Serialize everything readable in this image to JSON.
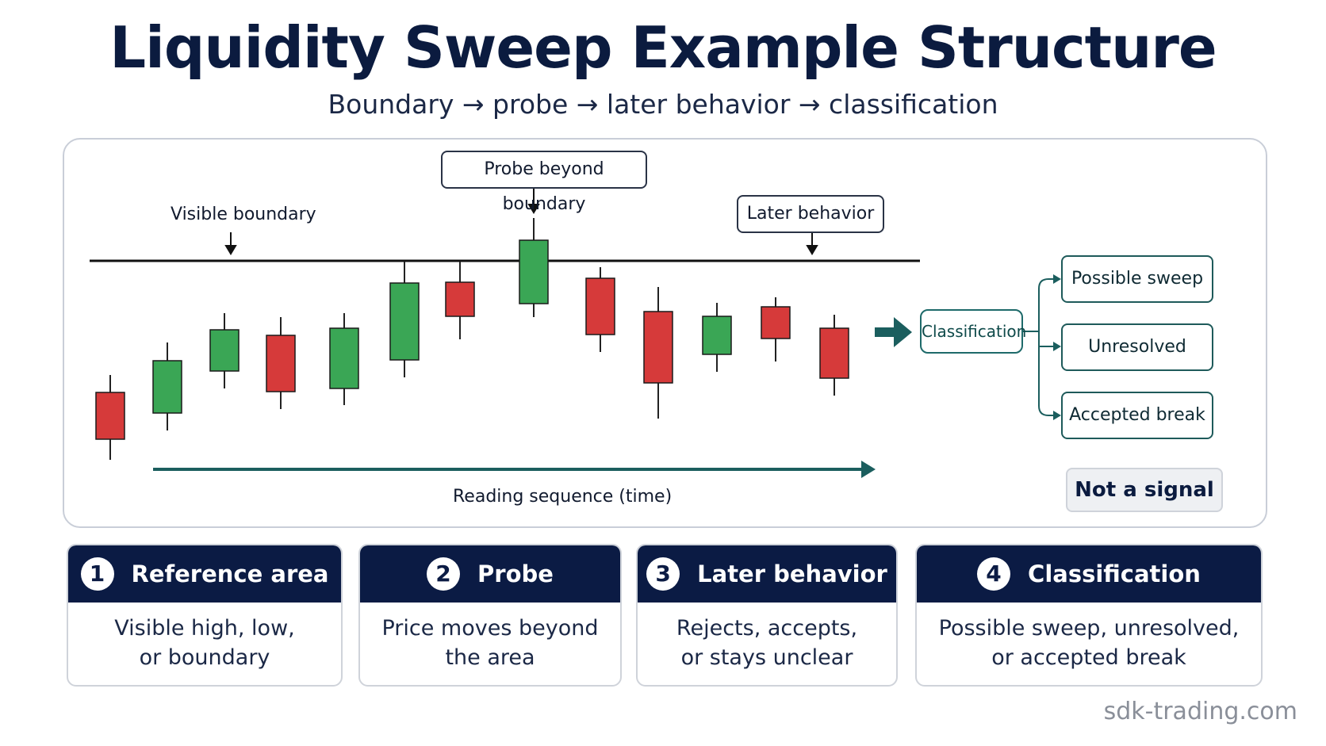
{
  "title": "Liquidity Sweep Example Structure",
  "subtitle": "Boundary → probe → later behavior → classification",
  "diagram": {
    "boundary_label": "Visible boundary",
    "probe_label": "Probe beyond boundary",
    "later_label": "Later behavior",
    "time_label": "Reading sequence (time)",
    "classification_label": "Classification",
    "outcomes": [
      "Possible sweep",
      "Unresolved",
      "Accepted break"
    ],
    "not_signal_label": "Not a signal",
    "colors": {
      "bull": "#3aa655",
      "bear": "#d63a3a",
      "teal": "#1b5e5e",
      "navy": "#0b1b44"
    },
    "candles": [
      {
        "dir": "bear"
      },
      {
        "dir": "bull"
      },
      {
        "dir": "bull"
      },
      {
        "dir": "bear"
      },
      {
        "dir": "bull"
      },
      {
        "dir": "bull"
      },
      {
        "dir": "bear"
      },
      {
        "dir": "bull"
      },
      {
        "dir": "bear"
      },
      {
        "dir": "bear"
      },
      {
        "dir": "bull"
      },
      {
        "dir": "bear"
      },
      {
        "dir": "bear"
      }
    ]
  },
  "steps": [
    {
      "num": "1",
      "title": "Reference area",
      "line1": "Visible high, low,",
      "line2": "or boundary"
    },
    {
      "num": "2",
      "title": "Probe",
      "line1": "Price moves beyond",
      "line2": "the area"
    },
    {
      "num": "3",
      "title": "Later behavior",
      "line1": "Rejects, accepts,",
      "line2": "or stays unclear"
    },
    {
      "num": "4",
      "title": "Classification",
      "line1": "Possible sweep, unresolved,",
      "line2": "or accepted break"
    }
  ],
  "watermark": "sdk-trading.com"
}
